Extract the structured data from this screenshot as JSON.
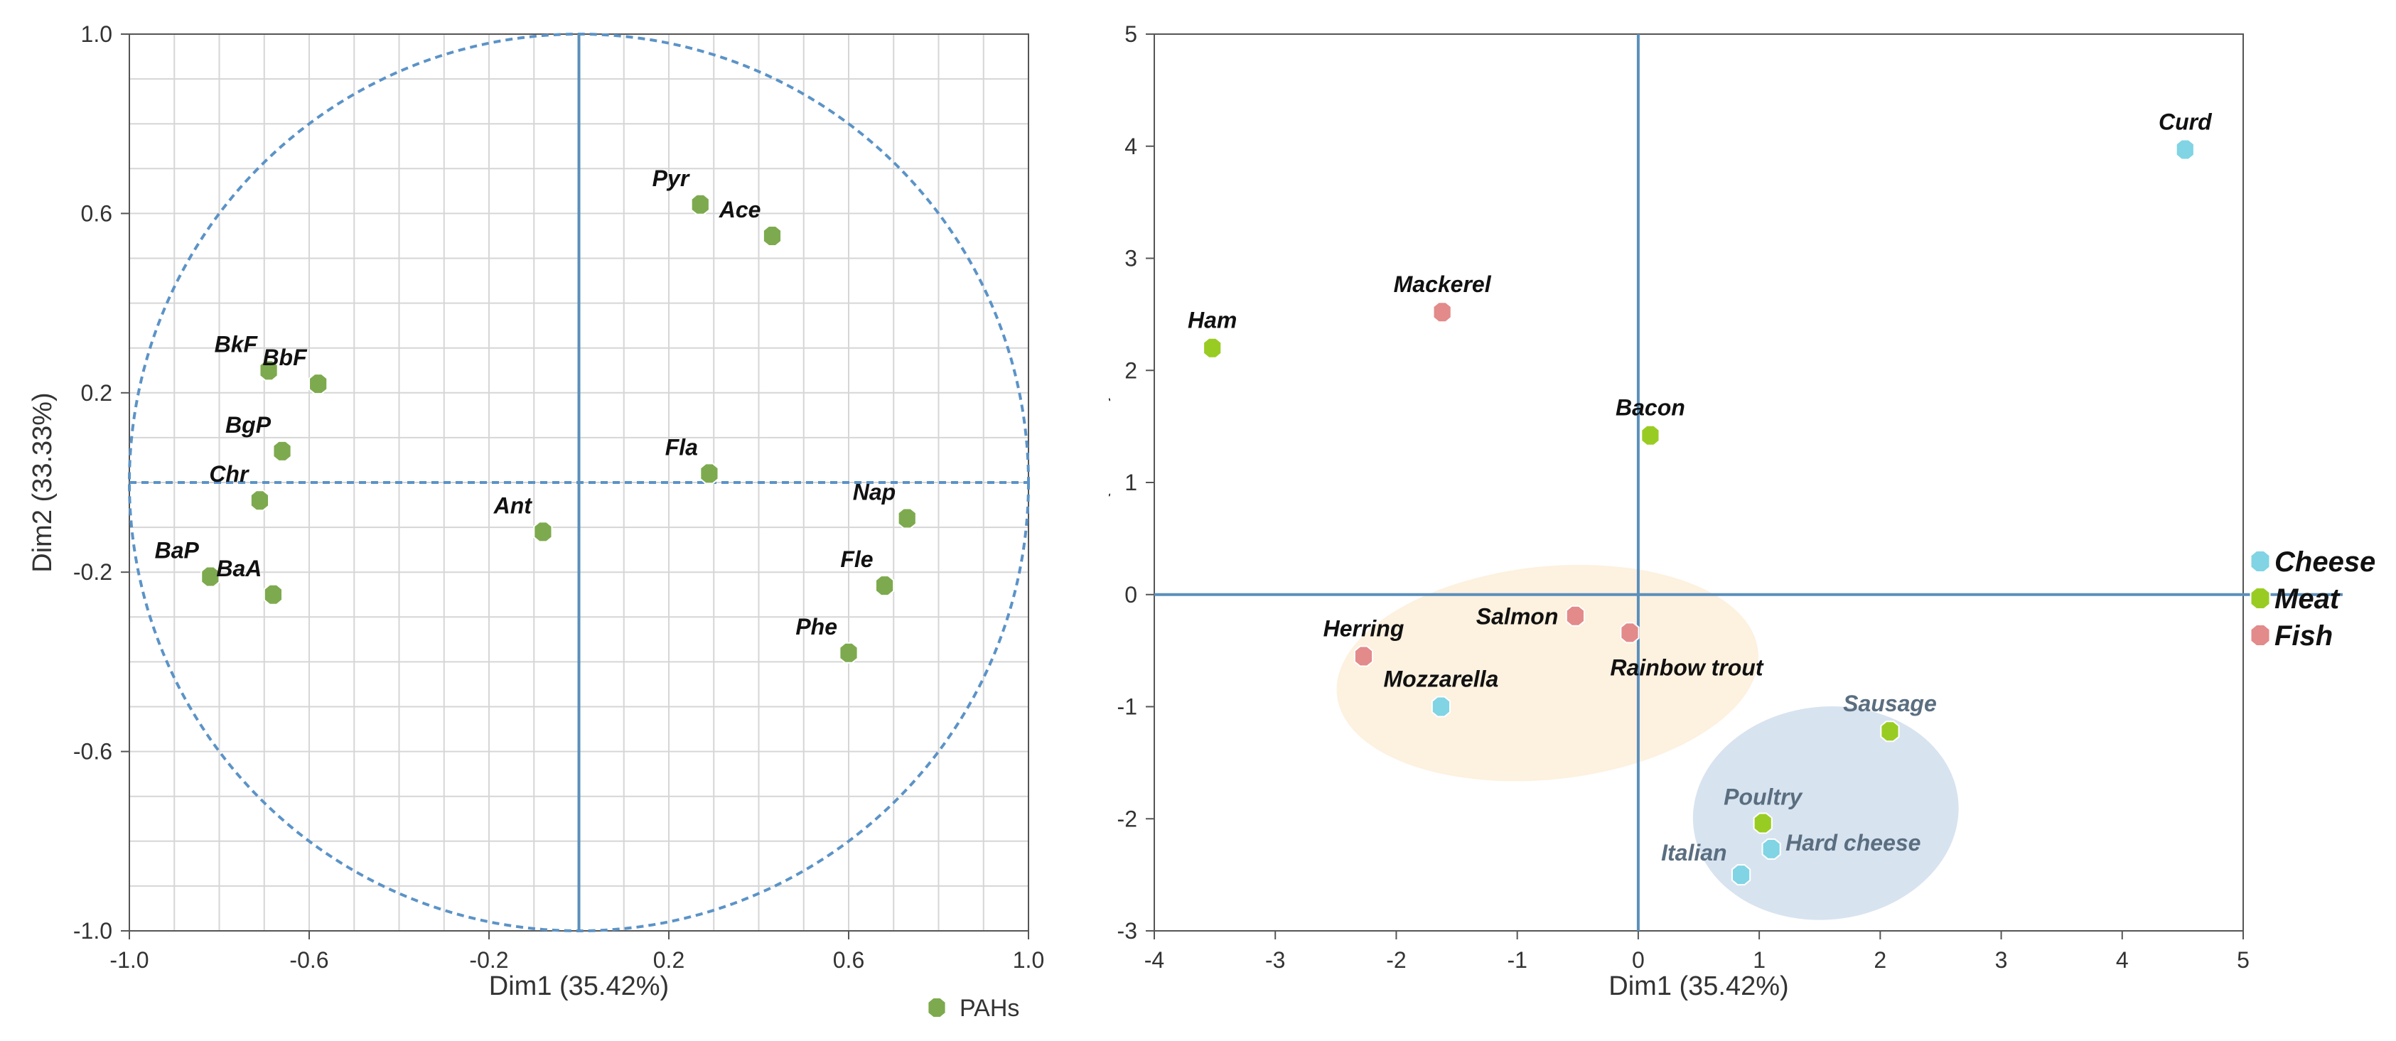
{
  "charts": [
    {
      "type": "scatter",
      "xlabel": "Dim1 (35.42%)",
      "ylabel": "Dim2 (33.33%)",
      "xlim": [
        -1.0,
        1.0
      ],
      "ylim": [
        -1.0,
        1.0
      ],
      "xticks": [
        -1.0,
        -0.6,
        -0.2,
        0.2,
        0.6,
        1.0
      ],
      "xtick_labels": [
        "-1.0",
        "-0.6",
        "-0.2",
        "0.2",
        "0.6",
        "1.0"
      ],
      "yticks": [
        -1.0,
        -0.6,
        -0.2,
        0.2,
        0.6,
        1.0
      ],
      "ytick_labels": [
        "-1.0",
        "-0.6",
        "-0.2",
        "0.2",
        "0.6",
        "1.0"
      ],
      "grid": true,
      "legend": {
        "position": "bottom-right",
        "entries": [
          {
            "label": "PAHs",
            "color": "#7daa4e"
          }
        ]
      },
      "circle": {
        "center": [
          0,
          0
        ],
        "radius": 1.0,
        "style": "dashed"
      },
      "points": [
        {
          "label": "Pyr",
          "x": 0.27,
          "y": 0.62
        },
        {
          "label": "Ace",
          "x": 0.43,
          "y": 0.55
        },
        {
          "label": "BkF",
          "x": -0.69,
          "y": 0.25
        },
        {
          "label": "BbF",
          "x": -0.58,
          "y": 0.22
        },
        {
          "label": "BgP",
          "x": -0.66,
          "y": 0.07
        },
        {
          "label": "Fla",
          "x": 0.29,
          "y": 0.02
        },
        {
          "label": "Chr",
          "x": -0.71,
          "y": -0.04
        },
        {
          "label": "Ant",
          "x": -0.08,
          "y": -0.11
        },
        {
          "label": "Nap",
          "x": 0.73,
          "y": -0.08
        },
        {
          "label": "BaP",
          "x": -0.82,
          "y": -0.21
        },
        {
          "label": "BaA",
          "x": -0.68,
          "y": -0.25
        },
        {
          "label": "Fle",
          "x": 0.68,
          "y": -0.23
        },
        {
          "label": "Phe",
          "x": 0.6,
          "y": -0.38
        }
      ]
    },
    {
      "type": "scatter",
      "xlabel": "Dim1 (35.42%)",
      "ylabel": "Dim2 (33.33%)",
      "xlim": [
        -4,
        5
      ],
      "ylim": [
        -3,
        5
      ],
      "xticks": [
        -4,
        -3,
        -2,
        -1,
        0,
        1,
        2,
        3,
        4,
        5
      ],
      "xtick_labels": [
        "-4",
        "-3",
        "-2",
        "-1",
        "0",
        "1",
        "2",
        "3",
        "4",
        "5"
      ],
      "yticks": [
        -3,
        -2,
        -1,
        0,
        1,
        2,
        3,
        4,
        5
      ],
      "ytick_labels": [
        "-3",
        "-2",
        "-1",
        "0",
        "1",
        "2",
        "3",
        "4",
        "5"
      ],
      "grid": false,
      "legend": {
        "position": "right",
        "entries": [
          {
            "label": "Cheese",
            "color": "#80d4e4"
          },
          {
            "label": "Meat",
            "color": "#99cc22"
          },
          {
            "label": "Fish",
            "color": "#e38a8a"
          }
        ]
      },
      "ellipses": [
        {
          "group": "Fish",
          "cx": -0.75,
          "cy": -0.7,
          "rx": 1.75,
          "ry": 0.95,
          "color": "#fdf0dc"
        },
        {
          "group": "Cheese",
          "cx": 1.55,
          "cy": -1.95,
          "rx": 1.1,
          "ry": 0.95,
          "color": "#d4e0ee"
        }
      ],
      "series": [
        {
          "name": "Cheese",
          "color": "#80d4e4",
          "points": [
            {
              "label": "Curd",
              "x": 4.52,
              "y": 3.97
            },
            {
              "label": "Mozzarella",
              "x": -1.63,
              "y": -1.0
            },
            {
              "label": "Hard cheese",
              "x": 1.1,
              "y": -2.27
            },
            {
              "label": "Italian",
              "x": 0.85,
              "y": -2.5
            }
          ]
        },
        {
          "name": "Meat",
          "color": "#99cc22",
          "points": [
            {
              "label": "Ham",
              "x": -3.52,
              "y": 2.2
            },
            {
              "label": "Bacon",
              "x": 0.1,
              "y": 1.42
            },
            {
              "label": "Sausage",
              "x": 2.08,
              "y": -1.22
            },
            {
              "label": "Poultry",
              "x": 1.03,
              "y": -2.04
            }
          ]
        },
        {
          "name": "Fish",
          "color": "#e38a8a",
          "points": [
            {
              "label": "Mackerel",
              "x": -1.62,
              "y": 2.52
            },
            {
              "label": "Salmon",
              "x": -0.52,
              "y": -0.19
            },
            {
              "label": "Rainbow trout",
              "x": -0.07,
              "y": -0.34
            },
            {
              "label": "Herring",
              "x": -2.27,
              "y": -0.55
            }
          ]
        }
      ]
    }
  ]
}
